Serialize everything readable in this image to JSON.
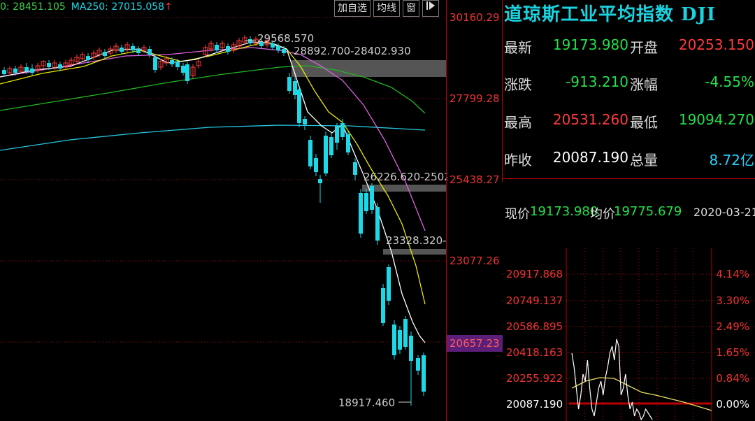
{
  "kline": {
    "ma_a_text": "0: 28451.105",
    "ma_b_text": "MA250: 27015.058",
    "ma_arrow": "↑",
    "annotations": {
      "high": "29568.570",
      "gap1": "28892.700-28402.930",
      "gap2": "26226.620-2502",
      "gap3": "23328.320-",
      "low": "18917.460"
    },
    "axis_labels": [
      "30160.29",
      "27799.28",
      "25438.27",
      "23077.26"
    ],
    "current_price_tag": "20657.23"
  },
  "toolbar": {
    "add_watch_label": "加自选",
    "ma_label": "均线",
    "window_label": "窗",
    "more_icon": "arrow-right-icon"
  },
  "quote": {
    "title": "道琼斯工业平均指数 DJI",
    "latest_label": "最新",
    "latest_value": "19173.980",
    "open_label": "开盘",
    "open_value": "20253.150",
    "change_label": "涨跌",
    "change_value": "-913.210",
    "pct_label": "涨幅",
    "pct_value": "-4.55%",
    "high_label": "最高",
    "high_value": "20531.260",
    "low_label": "最低",
    "low_value": "19094.270",
    "prev_label": "昨收",
    "prev_value": "20087.190",
    "volume_label": "总量",
    "volume_value": "8.72亿"
  },
  "intraday": {
    "price_label": "现价",
    "price_value": "19173.980",
    "avg_label": "均价",
    "avg_value": "19775.679",
    "date": "2020-03-21",
    "left_labels": [
      "20917.868",
      "20749.137",
      "20586.895",
      "20418.163",
      "20255.922",
      "20087.190"
    ],
    "right_labels": [
      "4.14%",
      "3.30%",
      "2.49%",
      "1.65%",
      "0.84%",
      "0.00%"
    ]
  },
  "colors": {
    "up": "#ff3b3b",
    "down": "#1cd9e8",
    "grid": "#b00000",
    "ma5": "#ffffff",
    "ma10": "#e8e800",
    "ma20": "#e060e0",
    "ma60": "#22b822",
    "ma250": "#25c8e0"
  }
}
